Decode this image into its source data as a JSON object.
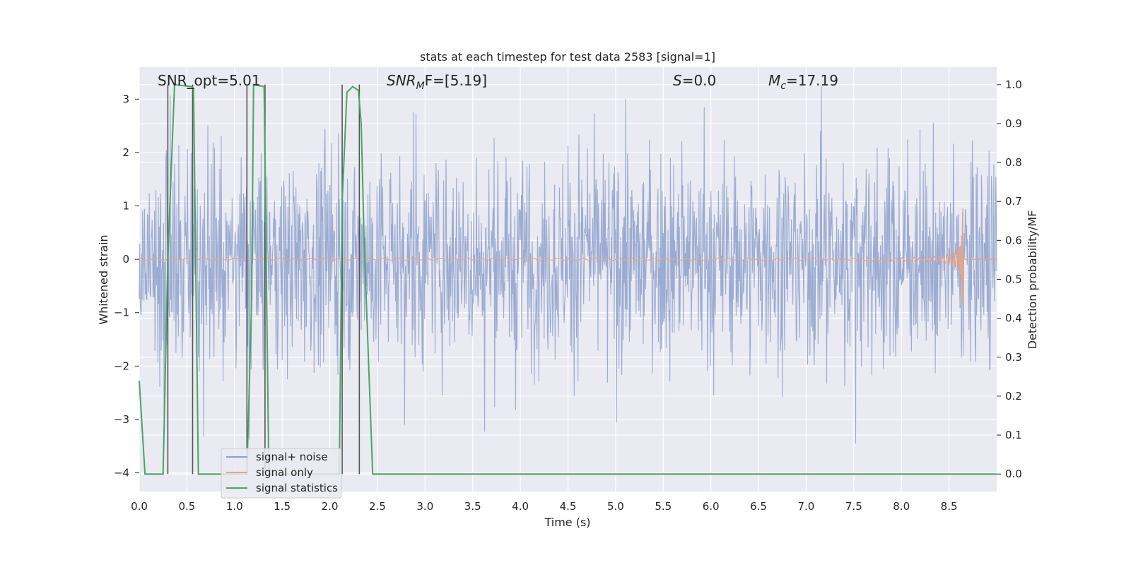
{
  "chart_data": {
    "type": "line",
    "title": "stats at each timestep for test data 2583 [signal=1]",
    "xlabel": "Time (s)",
    "ylabel_left": "Whitened strain",
    "ylabel_right": "Detection probability/MF",
    "xlim": [
      0.0,
      9.0
    ],
    "ylim_left": [
      -4.35,
      3.6
    ],
    "ylim_right": [
      -0.045,
      1.045
    ],
    "x_ticks": [
      "0.0",
      "0.5",
      "1.0",
      "1.5",
      "2.0",
      "2.5",
      "3.0",
      "3.5",
      "4.0",
      "4.5",
      "5.0",
      "5.5",
      "6.0",
      "6.5",
      "7.0",
      "7.5",
      "8.0",
      "8.5"
    ],
    "y_left_ticks": [
      "3",
      "2",
      "1",
      "0",
      "−1",
      "−2",
      "−3",
      "−4"
    ],
    "y_right_ticks": [
      "1.0",
      "0.9",
      "0.8",
      "0.7",
      "0.6",
      "0.5",
      "0.4",
      "0.3",
      "0.2",
      "0.1",
      "0.0"
    ],
    "grid": true,
    "legend_position": "lower-left",
    "annotations": {
      "snr_opt": "SNR_opt=5.01",
      "snr_mf_sym": "SNR",
      "snr_mf_sub": "M",
      "snr_mf_rest": "F=[5.19]",
      "s_sym": "S",
      "s_rest": "=0.0",
      "mc_sym": "M",
      "mc_sub": "c",
      "mc_rest": "=17.19"
    },
    "series": [
      {
        "name": "signal+ noise",
        "color": "#8da0cb",
        "axis": "left",
        "description_values": "noise, approximately in [-3.5, 3.3]"
      },
      {
        "name": "signal only",
        "color": "#e5a48a",
        "axis": "left",
        "envelope": {
          "t_start": 0.0,
          "t_merge": 8.65,
          "peak_amplitude": 0.95,
          "peak_low": -0.85
        }
      },
      {
        "name": "signal statistics",
        "color": "#4aa564",
        "axis": "right",
        "x": [
          0.0,
          0.06,
          0.25,
          0.3,
          0.37,
          0.55,
          0.57,
          0.62,
          0.8,
          1.1,
          1.13,
          1.18,
          1.2,
          1.31,
          1.36,
          1.8,
          2.1,
          2.13,
          2.18,
          2.24,
          2.3,
          2.33,
          2.36,
          2.45,
          2.8,
          9.0
        ],
        "values": [
          0.24,
          0.0,
          0.0,
          0.55,
          1.0,
          0.995,
          0.99,
          0.0,
          0.0,
          0.0,
          0.0,
          0.45,
          1.0,
          0.995,
          0.0,
          0.0,
          0.0,
          0.7,
          0.98,
          0.995,
          0.985,
          0.9,
          0.6,
          0.0,
          0.0,
          0.0
        ]
      }
    ],
    "vertical_markers": [
      0.3,
      0.56,
      1.13,
      1.32,
      2.13,
      2.31
    ]
  }
}
